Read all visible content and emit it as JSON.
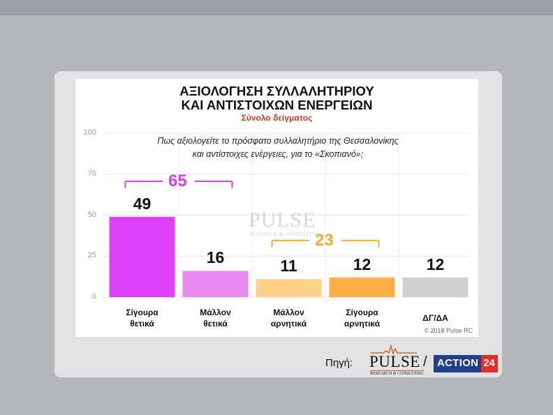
{
  "chart_data": {
    "type": "bar",
    "title_lines": [
      "ΑΞΙΟΛΟΓΗΣΗ ΣΥΛΛΑΛΗΤΗΡΙΟΥ",
      "ΚΑΙ ΑΝΤΙΣΤΟΙΧΩΝ ΕΝΕΡΓΕΙΩΝ"
    ],
    "subtitle": "Σύνολο δείγματος",
    "question": [
      "Πως αξιολογείτε το πρόσφατο συλλαλητήριο της Θεσσαλονίκης",
      "και αντίστοιχες ενέργειες, για το «Σκοπιανό»;"
    ],
    "categories": [
      [
        "Σίγουρα",
        "θετικά"
      ],
      [
        "Μάλλον",
        "θετικά"
      ],
      [
        "Μάλλον",
        "αρνητικά"
      ],
      [
        "Σίγουρα",
        "αρνητικά"
      ],
      [
        "ΔΓ/ΔΑ"
      ]
    ],
    "values": [
      49,
      16,
      11,
      12,
      12
    ],
    "value_labels": [
      "49",
      "16",
      "11",
      "12",
      "12"
    ],
    "colors": [
      "#e040fb",
      "#e98af0",
      "#ffd089",
      "#ffae45",
      "#d0d0d0"
    ],
    "ylim": [
      0,
      100
    ],
    "yticks": [
      "100",
      "75",
      "50",
      "25",
      "0"
    ],
    "ytick_values": [
      100,
      75,
      50,
      25,
      0
    ],
    "grid": true,
    "groups": [
      {
        "label": "65",
        "from": 0,
        "to": 1,
        "color": "#d63ee8"
      },
      {
        "label": "23",
        "from": 2,
        "to": 3,
        "color": "#ffa53b"
      }
    ],
    "copyright": "© 2018 Pulse RC",
    "watermark": "PULSE",
    "watermark_sub": "RESEARCH & CONSULTING"
  },
  "footer": {
    "source_label": "Πηγή:",
    "pulse_word": "PULSE",
    "pulse_sub": "RESEARCH & CONSULTING",
    "slash": "/",
    "action_text": "ACTION",
    "action_num": "24"
  }
}
